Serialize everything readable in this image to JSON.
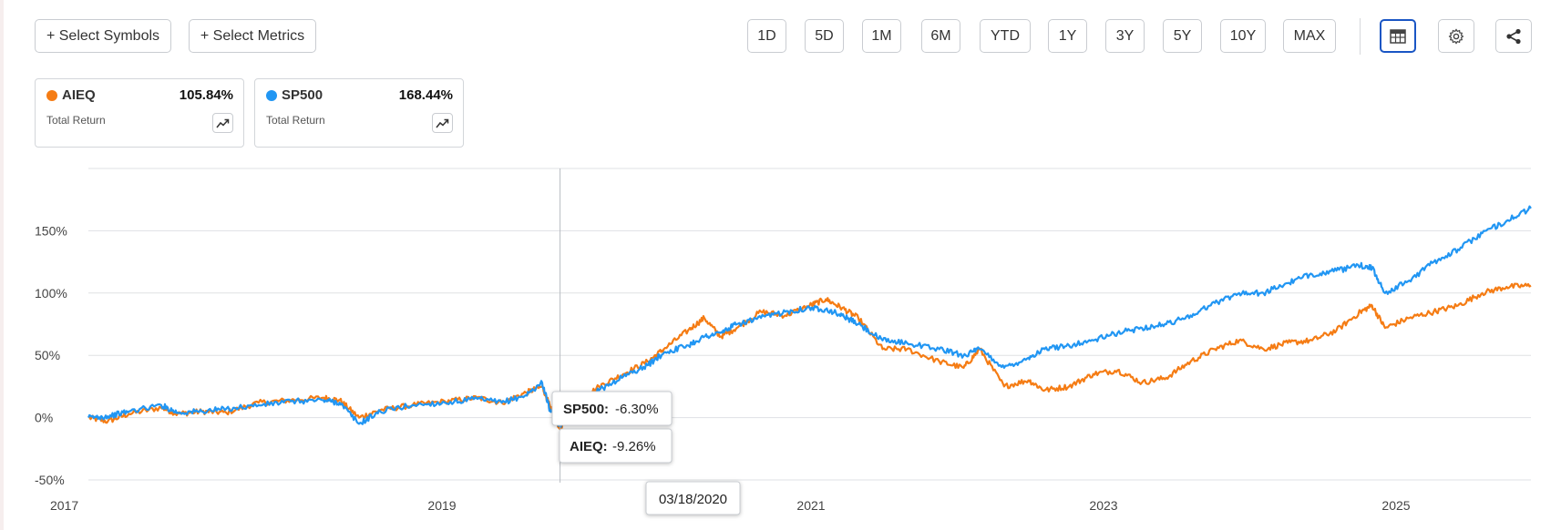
{
  "toolbar": {
    "select_symbols": "+ Select Symbols",
    "select_metrics": "+ Select Metrics",
    "periods": [
      "1D",
      "5D",
      "1M",
      "6M",
      "YTD",
      "1Y",
      "3Y",
      "5Y",
      "10Y",
      "MAX"
    ]
  },
  "icons": {
    "table": "table-icon",
    "settings": "gear-icon",
    "share": "share-icon",
    "trend": "trend-chart-icon"
  },
  "legend_cards": [
    {
      "symbol": "AIEQ",
      "value": "105.84%",
      "label": "Total Return",
      "color": "#f57c14"
    },
    {
      "symbol": "SP500",
      "value": "168.44%",
      "label": "Total Return",
      "color": "#2196f3"
    }
  ],
  "tooltip": {
    "date": "03/18/2020",
    "sp500_label": "SP500:",
    "sp500_value": "-6.30%",
    "aieq_label": "AIEQ:",
    "aieq_value": "-9.26%"
  },
  "chart_data": {
    "type": "line",
    "x_tick_labels": [
      "2017",
      "2019",
      "2021",
      "2023",
      "2025"
    ],
    "y_tick_labels": [
      "150%",
      "100%",
      "50%",
      "0%",
      "-50%"
    ],
    "y_ticks": [
      150,
      100,
      50,
      0,
      -50
    ],
    "xlim": [
      2017.3,
      2026.2
    ],
    "ylim": [
      -50,
      200
    ],
    "grid": true,
    "crosshair_x": 2020.21,
    "series": [
      {
        "name": "AIEQ",
        "color": "#f57c14",
        "x": [
          2017.3,
          2017.42,
          2017.55,
          2017.75,
          2017.85,
          2018.0,
          2018.15,
          2018.35,
          2018.55,
          2018.75,
          2018.85,
          2018.97,
          2019.1,
          2019.3,
          2019.5,
          2019.7,
          2019.85,
          2020.0,
          2020.1,
          2020.15,
          2020.21,
          2020.3,
          2020.45,
          2020.6,
          2020.75,
          2020.85,
          2021.0,
          2021.1,
          2021.2,
          2021.3,
          2021.45,
          2021.6,
          2021.75,
          2021.85,
          2021.95,
          2022.05,
          2022.2,
          2022.35,
          2022.55,
          2022.7,
          2022.8,
          2022.95,
          2023.1,
          2023.2,
          2023.35,
          2023.5,
          2023.65,
          2023.8,
          2023.95,
          2024.1,
          2024.25,
          2024.4,
          2024.55,
          2024.7,
          2024.85,
          2025.0,
          2025.15,
          2025.22,
          2025.3,
          2025.45,
          2025.6,
          2025.75,
          2025.9,
          2026.05,
          2026.2
        ],
        "y": [
          0,
          -3,
          3,
          8,
          3,
          5,
          4,
          12,
          14,
          16,
          14,
          0,
          6,
          10,
          13,
          16,
          12,
          20,
          25,
          8,
          -9.26,
          10,
          25,
          35,
          45,
          55,
          70,
          80,
          65,
          72,
          85,
          82,
          90,
          95,
          88,
          80,
          55,
          55,
          45,
          40,
          55,
          25,
          30,
          22,
          25,
          35,
          38,
          28,
          32,
          45,
          55,
          62,
          55,
          60,
          62,
          70,
          85,
          90,
          72,
          80,
          85,
          90,
          100,
          105,
          106
        ]
      },
      {
        "name": "SP500",
        "color": "#2196f3",
        "x": [
          2017.3,
          2017.42,
          2017.55,
          2017.75,
          2017.85,
          2018.0,
          2018.15,
          2018.35,
          2018.55,
          2018.75,
          2018.85,
          2018.97,
          2019.1,
          2019.3,
          2019.5,
          2019.7,
          2019.85,
          2020.0,
          2020.1,
          2020.15,
          2020.21,
          2020.3,
          2020.45,
          2020.6,
          2020.75,
          2020.85,
          2021.0,
          2021.1,
          2021.2,
          2021.3,
          2021.45,
          2021.6,
          2021.75,
          2021.85,
          2021.95,
          2022.05,
          2022.2,
          2022.35,
          2022.55,
          2022.7,
          2022.8,
          2022.95,
          2023.1,
          2023.2,
          2023.35,
          2023.5,
          2023.65,
          2023.8,
          2023.95,
          2024.1,
          2024.25,
          2024.4,
          2024.55,
          2024.7,
          2024.85,
          2025.0,
          2025.15,
          2025.22,
          2025.3,
          2025.45,
          2025.6,
          2025.75,
          2025.9,
          2026.05,
          2026.2
        ],
        "y": [
          0,
          1,
          5,
          10,
          4,
          5,
          7,
          10,
          13,
          14,
          12,
          -5,
          5,
          10,
          12,
          15,
          12,
          18,
          28,
          5,
          -6.3,
          10,
          22,
          33,
          42,
          52,
          58,
          65,
          68,
          75,
          80,
          85,
          88,
          87,
          82,
          75,
          62,
          60,
          55,
          50,
          55,
          40,
          48,
          55,
          58,
          62,
          68,
          72,
          75,
          82,
          92,
          100,
          100,
          108,
          115,
          118,
          122,
          120,
          100,
          110,
          125,
          135,
          148,
          158,
          168
        ]
      }
    ]
  }
}
